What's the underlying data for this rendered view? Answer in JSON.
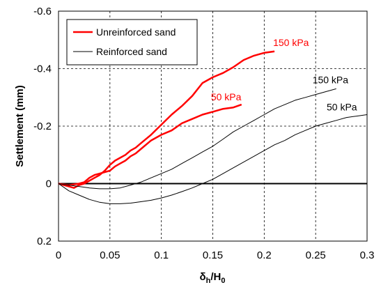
{
  "chart_data": {
    "type": "line",
    "xlabel": {
      "main": "δ",
      "sub1": "h",
      "mid": "/H",
      "sub2": "0"
    },
    "ylabel": "Settlement (mm)",
    "xlim": [
      0,
      0.3
    ],
    "ylim": [
      0.2,
      -0.6
    ],
    "y_reversed": true,
    "grid": true,
    "legend_position": "top-left",
    "xticks": [
      {
        "value": 0,
        "label": "0"
      },
      {
        "value": 0.05,
        "label": "0.05"
      },
      {
        "value": 0.1,
        "label": "0.1"
      },
      {
        "value": 0.15,
        "label": "0.15"
      },
      {
        "value": 0.2,
        "label": "0.2"
      },
      {
        "value": 0.25,
        "label": "0.25"
      },
      {
        "value": 0.3,
        "label": "0.3"
      }
    ],
    "yticks": [
      {
        "value": -0.6,
        "label": "-0.6"
      },
      {
        "value": -0.4,
        "label": "-0.4"
      },
      {
        "value": -0.2,
        "label": "-0.2"
      },
      {
        "value": 0,
        "label": "0"
      },
      {
        "value": 0.2,
        "label": "0.2"
      }
    ],
    "legend": [
      {
        "label": "Unreinforced sand",
        "color": "#ff0000"
      },
      {
        "label": "Reinforced sand",
        "color": "#000000"
      }
    ],
    "series": [
      {
        "group": "Unreinforced sand",
        "color": "#ff0000",
        "label": "150 kPa",
        "points": [
          [
            0,
            0
          ],
          [
            0.01,
            0.01
          ],
          [
            0.015,
            0.015
          ],
          [
            0.02,
            0.005
          ],
          [
            0.025,
            0.0
          ],
          [
            0.03,
            -0.01
          ],
          [
            0.035,
            -0.02
          ],
          [
            0.04,
            -0.03
          ],
          [
            0.045,
            -0.045
          ],
          [
            0.05,
            -0.065
          ],
          [
            0.055,
            -0.08
          ],
          [
            0.06,
            -0.09
          ],
          [
            0.065,
            -0.1
          ],
          [
            0.07,
            -0.115
          ],
          [
            0.075,
            -0.125
          ],
          [
            0.08,
            -0.14
          ],
          [
            0.09,
            -0.17
          ],
          [
            0.1,
            -0.205
          ],
          [
            0.11,
            -0.24
          ],
          [
            0.12,
            -0.27
          ],
          [
            0.13,
            -0.305
          ],
          [
            0.14,
            -0.35
          ],
          [
            0.15,
            -0.37
          ],
          [
            0.16,
            -0.385
          ],
          [
            0.17,
            -0.405
          ],
          [
            0.18,
            -0.43
          ],
          [
            0.19,
            -0.445
          ],
          [
            0.2,
            -0.455
          ],
          [
            0.21,
            -0.46
          ]
        ]
      },
      {
        "group": "Unreinforced sand",
        "color": "#ff0000",
        "label": "50 kPa",
        "points": [
          [
            0,
            0
          ],
          [
            0.01,
            0.005
          ],
          [
            0.02,
            0.0
          ],
          [
            0.025,
            -0.005
          ],
          [
            0.03,
            -0.02
          ],
          [
            0.035,
            -0.03
          ],
          [
            0.04,
            -0.035
          ],
          [
            0.045,
            -0.04
          ],
          [
            0.05,
            -0.045
          ],
          [
            0.055,
            -0.06
          ],
          [
            0.06,
            -0.07
          ],
          [
            0.065,
            -0.08
          ],
          [
            0.07,
            -0.095
          ],
          [
            0.075,
            -0.105
          ],
          [
            0.08,
            -0.12
          ],
          [
            0.09,
            -0.15
          ],
          [
            0.1,
            -0.17
          ],
          [
            0.11,
            -0.185
          ],
          [
            0.12,
            -0.21
          ],
          [
            0.13,
            -0.225
          ],
          [
            0.14,
            -0.24
          ],
          [
            0.15,
            -0.25
          ],
          [
            0.16,
            -0.26
          ],
          [
            0.17,
            -0.265
          ],
          [
            0.178,
            -0.275
          ]
        ]
      },
      {
        "group": "Reinforced sand",
        "color": "#000000",
        "label": "150 kPa",
        "points": [
          [
            0,
            0
          ],
          [
            0.01,
            0.005
          ],
          [
            0.02,
            0.01
          ],
          [
            0.03,
            0.015
          ],
          [
            0.04,
            0.018
          ],
          [
            0.05,
            0.018
          ],
          [
            0.06,
            0.015
          ],
          [
            0.07,
            0.005
          ],
          [
            0.08,
            -0.005
          ],
          [
            0.09,
            -0.02
          ],
          [
            0.1,
            -0.035
          ],
          [
            0.11,
            -0.05
          ],
          [
            0.12,
            -0.07
          ],
          [
            0.13,
            -0.09
          ],
          [
            0.14,
            -0.11
          ],
          [
            0.15,
            -0.13
          ],
          [
            0.16,
            -0.155
          ],
          [
            0.17,
            -0.18
          ],
          [
            0.18,
            -0.2
          ],
          [
            0.19,
            -0.22
          ],
          [
            0.2,
            -0.24
          ],
          [
            0.21,
            -0.26
          ],
          [
            0.22,
            -0.275
          ],
          [
            0.23,
            -0.29
          ],
          [
            0.24,
            -0.3
          ],
          [
            0.25,
            -0.31
          ],
          [
            0.26,
            -0.32
          ],
          [
            0.27,
            -0.33
          ]
        ]
      },
      {
        "group": "Reinforced sand",
        "color": "#000000",
        "label": "50 kPa",
        "points": [
          [
            0,
            0
          ],
          [
            0.01,
            0.025
          ],
          [
            0.02,
            0.04
          ],
          [
            0.03,
            0.055
          ],
          [
            0.04,
            0.065
          ],
          [
            0.05,
            0.07
          ],
          [
            0.06,
            0.07
          ],
          [
            0.07,
            0.068
          ],
          [
            0.08,
            0.063
          ],
          [
            0.09,
            0.058
          ],
          [
            0.1,
            0.05
          ],
          [
            0.11,
            0.04
          ],
          [
            0.12,
            0.028
          ],
          [
            0.13,
            0.015
          ],
          [
            0.14,
            0.0
          ],
          [
            0.15,
            -0.015
          ],
          [
            0.16,
            -0.035
          ],
          [
            0.17,
            -0.055
          ],
          [
            0.18,
            -0.075
          ],
          [
            0.19,
            -0.095
          ],
          [
            0.2,
            -0.115
          ],
          [
            0.21,
            -0.135
          ],
          [
            0.22,
            -0.15
          ],
          [
            0.23,
            -0.17
          ],
          [
            0.24,
            -0.185
          ],
          [
            0.25,
            -0.2
          ],
          [
            0.26,
            -0.21
          ],
          [
            0.27,
            -0.22
          ],
          [
            0.28,
            -0.23
          ],
          [
            0.29,
            -0.235
          ],
          [
            0.3,
            -0.24
          ]
        ]
      }
    ]
  }
}
